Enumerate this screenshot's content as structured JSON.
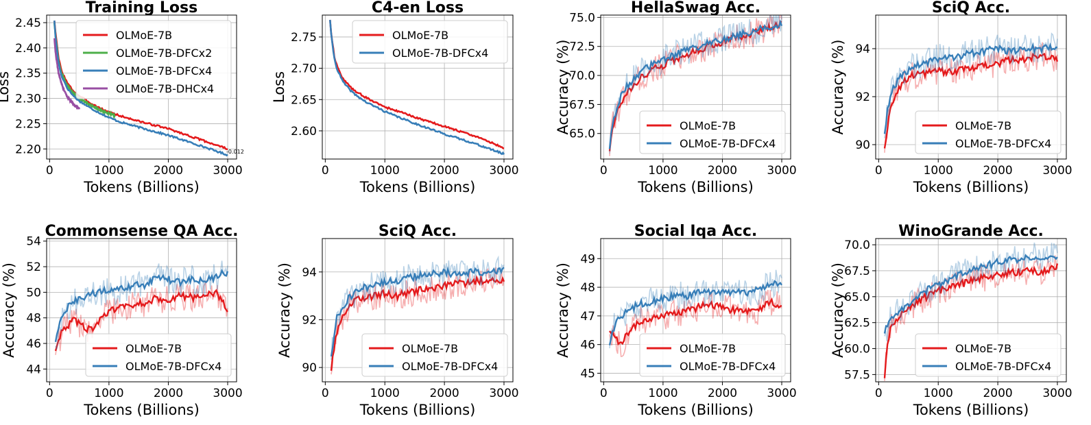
{
  "figure": {
    "colors": {
      "OLMoE-7B": "#e41a1c",
      "OLMoE-7B-DFCx2": "#4daf4a",
      "OLMoE-7B-DFCx4": "#377eb8",
      "OLMoE-7B-DHCx4": "#984ea3"
    }
  },
  "chart_data": [
    {
      "type": "line",
      "title": "Training Loss",
      "xlabel": "Tokens (Billions)",
      "ylabel": "Loss",
      "xlim": [
        -50,
        3150
      ],
      "ylim": [
        2.18,
        2.465
      ],
      "xticks": [
        0,
        1000,
        2000,
        3000
      ],
      "yticks": [
        2.2,
        2.25,
        2.3,
        2.35,
        2.4,
        2.45
      ],
      "ytick_labels": [
        "2.20",
        "2.25",
        "2.30",
        "2.35",
        "2.40",
        "2.45"
      ],
      "legend_position": "top-right",
      "annotation": {
        "text": "-0.012",
        "x": 3000,
        "y": 2.195
      },
      "series": [
        {
          "name": "OLMoE-7B",
          "x": [
            80,
            100,
            150,
            200,
            300,
            400,
            500,
            700,
            900,
            1000,
            1200,
            1500,
            2000,
            2500,
            3000
          ],
          "values": [
            2.455,
            2.43,
            2.38,
            2.355,
            2.33,
            2.315,
            2.305,
            2.29,
            2.278,
            2.273,
            2.265,
            2.255,
            2.24,
            2.22,
            2.2
          ]
        },
        {
          "name": "OLMoE-7B-DFCx2",
          "x": [
            80,
            100,
            150,
            200,
            300,
            400,
            500,
            700,
            900,
            1000,
            1100
          ],
          "values": [
            2.45,
            2.425,
            2.375,
            2.35,
            2.325,
            2.31,
            2.3,
            2.286,
            2.274,
            2.27,
            2.266
          ]
        },
        {
          "name": "OLMoE-7B-DFCx4",
          "x": [
            80,
            100,
            150,
            200,
            300,
            400,
            500,
            700,
            900,
            1000,
            1200,
            1500,
            2000,
            2500,
            3000
          ],
          "values": [
            2.455,
            2.42,
            2.37,
            2.345,
            2.32,
            2.305,
            2.295,
            2.28,
            2.268,
            2.262,
            2.253,
            2.243,
            2.227,
            2.208,
            2.188
          ]
        },
        {
          "name": "OLMoE-7B-DHCx4",
          "x": [
            80,
            100,
            150,
            200,
            250,
            300,
            350,
            400,
            450,
            500
          ],
          "values": [
            2.42,
            2.39,
            2.35,
            2.33,
            2.315,
            2.303,
            2.295,
            2.289,
            2.284,
            2.28
          ]
        }
      ]
    },
    {
      "type": "line",
      "title": "C4-en Loss",
      "xlabel": "Tokens (Billions)",
      "ylabel": "Loss",
      "xlim": [
        -50,
        3150
      ],
      "ylim": [
        2.555,
        2.785
      ],
      "xticks": [
        0,
        1000,
        2000,
        3000
      ],
      "yticks": [
        2.6,
        2.65,
        2.7,
        2.75
      ],
      "ytick_labels": [
        "2.60",
        "2.65",
        "2.70",
        "2.75"
      ],
      "legend_position": "top-right",
      "series": [
        {
          "name": "OLMoE-7B",
          "x": [
            80,
            100,
            150,
            200,
            300,
            400,
            500,
            700,
            900,
            1000,
            1200,
            1500,
            2000,
            2500,
            3000
          ],
          "values": [
            2.778,
            2.755,
            2.72,
            2.702,
            2.683,
            2.672,
            2.664,
            2.652,
            2.643,
            2.638,
            2.632,
            2.622,
            2.607,
            2.592,
            2.573
          ]
        },
        {
          "name": "OLMoE-7B-DFCx4",
          "x": [
            80,
            100,
            150,
            200,
            300,
            400,
            500,
            700,
            900,
            1000,
            1200,
            1500,
            2000,
            2500,
            3000
          ],
          "values": [
            2.778,
            2.752,
            2.717,
            2.698,
            2.678,
            2.667,
            2.658,
            2.645,
            2.636,
            2.631,
            2.623,
            2.612,
            2.595,
            2.58,
            2.563
          ]
        }
      ]
    },
    {
      "type": "line",
      "title": "HellaSwag Acc.",
      "xlabel": "Tokens (Billions)",
      "ylabel": "Accuracy (%)",
      "xlim": [
        -50,
        3150
      ],
      "ylim": [
        62.8,
        75.2
      ],
      "xticks": [
        0,
        1000,
        2000,
        3000
      ],
      "yticks": [
        65.0,
        67.5,
        70.0,
        72.5,
        75.0
      ],
      "ytick_labels": [
        "65.0",
        "67.5",
        "70.0",
        "72.5",
        "75.0"
      ],
      "legend_position": "lower-right",
      "series": [
        {
          "name": "OLMoE-7B",
          "x": [
            100,
            150,
            200,
            300,
            400,
            500,
            600,
            800,
            1000,
            1200,
            1500,
            1800,
            2000,
            2500,
            3000
          ],
          "values": [
            63.6,
            65.5,
            66.5,
            67.8,
            68.6,
            69.2,
            69.7,
            70.4,
            70.9,
            71.4,
            72.0,
            72.6,
            72.9,
            73.6,
            74.4
          ]
        },
        {
          "name": "OLMoE-7B-DFCx4",
          "x": [
            100,
            150,
            200,
            300,
            400,
            500,
            600,
            800,
            1000,
            1200,
            1500,
            1800,
            2000,
            2500,
            3000
          ],
          "values": [
            63.8,
            65.8,
            66.9,
            68.3,
            69.1,
            69.7,
            70.2,
            70.9,
            71.4,
            71.8,
            72.3,
            72.8,
            73.1,
            73.8,
            74.5
          ]
        }
      ]
    },
    {
      "type": "line",
      "title": "SciQ Acc.",
      "xlabel": "Tokens (Billions)",
      "ylabel": "Accuracy (%)",
      "xlim": [
        -50,
        3150
      ],
      "ylim": [
        89.4,
        95.4
      ],
      "xticks": [
        0,
        1000,
        2000,
        3000
      ],
      "yticks": [
        90,
        92,
        94
      ],
      "ytick_labels": [
        "90",
        "92",
        "94"
      ],
      "legend_position": "lower-right",
      "series": [
        {
          "name": "OLMoE-7B",
          "x": [
            100,
            150,
            200,
            300,
            400,
            500,
            600,
            800,
            1000,
            1200,
            1500,
            1800,
            2000,
            2200,
            2500,
            2800,
            3000
          ],
          "values": [
            89.9,
            90.8,
            91.5,
            92.2,
            92.6,
            92.8,
            92.9,
            93.0,
            93.1,
            93.0,
            93.2,
            93.3,
            93.4,
            93.5,
            93.6,
            93.7,
            93.6
          ]
        },
        {
          "name": "OLMoE-7B-DFCx4",
          "x": [
            100,
            150,
            200,
            300,
            400,
            500,
            600,
            800,
            1000,
            1200,
            1500,
            1800,
            2000,
            2200,
            2500,
            2800,
            3000
          ],
          "values": [
            90.5,
            91.4,
            92.1,
            92.6,
            92.9,
            93.1,
            93.3,
            93.4,
            93.6,
            93.6,
            93.8,
            93.9,
            94.0,
            93.9,
            94.0,
            94.0,
            94.1
          ]
        }
      ]
    },
    {
      "type": "line",
      "title": "Commonsense QA Acc.",
      "xlabel": "Tokens (Billions)",
      "ylabel": "Accuracy (%)",
      "xlim": [
        -50,
        3150
      ],
      "ylim": [
        43.0,
        54.2
      ],
      "xticks": [
        0,
        1000,
        2000,
        3000
      ],
      "yticks": [
        44,
        46,
        48,
        50,
        52,
        54
      ],
      "ytick_labels": [
        "44",
        "46",
        "48",
        "50",
        "52",
        "54"
      ],
      "legend_position": "lower-right",
      "series": [
        {
          "name": "OLMoE-7B",
          "x": [
            100,
            200,
            300,
            400,
            500,
            600,
            700,
            800,
            1000,
            1200,
            1400,
            1600,
            1800,
            2000,
            2200,
            2400,
            2600,
            2800,
            3000
          ],
          "values": [
            45.5,
            46.8,
            47.3,
            47.8,
            47.5,
            47.2,
            47.0,
            47.6,
            48.5,
            48.8,
            49.0,
            49.2,
            49.5,
            49.4,
            49.7,
            49.6,
            49.8,
            50.0,
            48.6
          ]
        },
        {
          "name": "OLMoE-7B-DFCx4",
          "x": [
            100,
            200,
            300,
            400,
            500,
            600,
            700,
            800,
            1000,
            1200,
            1400,
            1600,
            1800,
            2000,
            2200,
            2400,
            2600,
            2800,
            3000
          ],
          "values": [
            46.2,
            48.0,
            48.8,
            49.2,
            49.4,
            49.6,
            49.8,
            50.0,
            50.1,
            50.2,
            50.5,
            50.6,
            51.2,
            51.0,
            50.8,
            51.0,
            50.8,
            51.2,
            51.6
          ]
        }
      ]
    },
    {
      "type": "line",
      "title": "SciQ Acc.",
      "xlabel": "Tokens (Billions)",
      "ylabel": "Accuracy (%)",
      "xlim": [
        -50,
        3150
      ],
      "ylim": [
        89.4,
        95.4
      ],
      "xticks": [
        0,
        1000,
        2000,
        3000
      ],
      "yticks": [
        90,
        92,
        94
      ],
      "ytick_labels": [
        "90",
        "92",
        "94"
      ],
      "legend_position": "lower-right",
      "series": [
        {
          "name": "OLMoE-7B",
          "x": [
            100,
            150,
            200,
            300,
            400,
            500,
            600,
            800,
            1000,
            1200,
            1500,
            1800,
            2000,
            2200,
            2500,
            2800,
            3000
          ],
          "values": [
            89.9,
            90.8,
            91.5,
            92.2,
            92.6,
            92.8,
            92.9,
            93.0,
            93.1,
            93.0,
            93.2,
            93.3,
            93.4,
            93.5,
            93.6,
            93.7,
            93.6
          ]
        },
        {
          "name": "OLMoE-7B-DFCx4",
          "x": [
            100,
            150,
            200,
            300,
            400,
            500,
            600,
            800,
            1000,
            1200,
            1500,
            1800,
            2000,
            2200,
            2500,
            2800,
            3000
          ],
          "values": [
            90.5,
            91.4,
            92.1,
            92.6,
            92.9,
            93.1,
            93.3,
            93.4,
            93.6,
            93.6,
            93.8,
            93.9,
            94.0,
            93.9,
            94.0,
            94.0,
            94.1
          ]
        }
      ]
    },
    {
      "type": "line",
      "title": "Social Iqa Acc.",
      "xlabel": "Tokens (Billions)",
      "ylabel": "Accuracy (%)",
      "xlim": [
        -50,
        3150
      ],
      "ylim": [
        44.7,
        49.7
      ],
      "xticks": [
        0,
        1000,
        2000,
        3000
      ],
      "yticks": [
        45,
        46,
        47,
        48,
        49
      ],
      "ytick_labels": [
        "45",
        "46",
        "47",
        "48",
        "49"
      ],
      "legend_position": "lower-right",
      "series": [
        {
          "name": "OLMoE-7B",
          "x": [
            100,
            200,
            300,
            400,
            500,
            600,
            800,
            1000,
            1200,
            1400,
            1600,
            1800,
            2000,
            2200,
            2400,
            2600,
            2800,
            3000
          ],
          "values": [
            46.5,
            46.2,
            46.0,
            46.4,
            46.6,
            46.8,
            46.9,
            47.0,
            47.1,
            47.2,
            47.3,
            47.4,
            47.3,
            47.2,
            47.1,
            47.2,
            47.5,
            47.3
          ]
        },
        {
          "name": "OLMoE-7B-DFCx4",
          "x": [
            100,
            200,
            300,
            400,
            500,
            600,
            800,
            1000,
            1200,
            1400,
            1600,
            1800,
            2000,
            2200,
            2400,
            2600,
            2800,
            3000
          ],
          "values": [
            46.0,
            46.8,
            47.0,
            47.2,
            47.3,
            47.4,
            47.5,
            47.6,
            47.7,
            47.7,
            47.8,
            47.8,
            47.9,
            47.8,
            47.8,
            47.9,
            48.1,
            48.2
          ]
        }
      ]
    },
    {
      "type": "line",
      "title": "WinoGrande Acc.",
      "xlabel": "Tokens (Billions)",
      "ylabel": "Accuracy (%)",
      "xlim": [
        -50,
        3150
      ],
      "ylim": [
        56.8,
        70.6
      ],
      "xticks": [
        0,
        1000,
        2000,
        3000
      ],
      "yticks": [
        57.5,
        60.0,
        62.5,
        65.0,
        67.5,
        70.0
      ],
      "ytick_labels": [
        "57.5",
        "60.0",
        "62.5",
        "65.0",
        "67.5",
        "70.0"
      ],
      "legend_position": "lower-right",
      "series": [
        {
          "name": "OLMoE-7B",
          "x": [
            100,
            150,
            200,
            300,
            400,
            500,
            600,
            800,
            1000,
            1200,
            1500,
            1800,
            2000,
            2200,
            2500,
            2800,
            3000
          ],
          "values": [
            57.2,
            60.5,
            61.8,
            62.6,
            63.3,
            63.8,
            64.3,
            65.0,
            65.5,
            65.9,
            66.4,
            66.9,
            67.1,
            67.3,
            67.5,
            67.4,
            67.9
          ]
        },
        {
          "name": "OLMoE-7B-DFCx4",
          "x": [
            100,
            150,
            200,
            300,
            400,
            500,
            600,
            800,
            1000,
            1200,
            1500,
            1800,
            2000,
            2200,
            2500,
            2800,
            3000
          ],
          "values": [
            61.5,
            62.2,
            62.8,
            63.4,
            63.9,
            64.3,
            64.8,
            65.6,
            66.2,
            66.7,
            67.4,
            68.0,
            68.3,
            68.5,
            68.8,
            68.9,
            69.0
          ]
        }
      ]
    }
  ]
}
